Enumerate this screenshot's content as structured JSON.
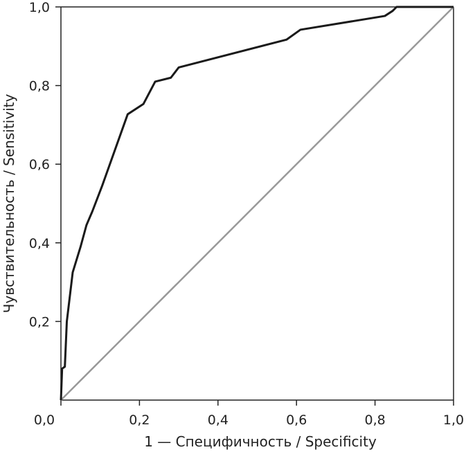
{
  "chart_data": {
    "type": "line",
    "title": "",
    "xlabel": "1 — Специфичность / Specificity",
    "ylabel": "Чувствительность / Sensitivity",
    "xlim": [
      0,
      1
    ],
    "ylim": [
      0,
      1
    ],
    "x_tick_values": [
      0,
      0.2,
      0.4,
      0.6,
      0.8,
      1.0
    ],
    "y_tick_values": [
      0.2,
      0.4,
      0.6,
      0.8,
      1.0
    ],
    "x_tick_labels": [
      "0,0",
      "0,2",
      "0,4",
      "0,6",
      "0,8",
      "1,0"
    ],
    "y_tick_labels": [
      "0,2",
      "0,4",
      "0,6",
      "0,8",
      "1,0"
    ],
    "grid": false,
    "series": [
      {
        "color": "#1a1a1a",
        "points": [
          [
            0.0,
            0.0
          ],
          [
            0.003,
            0.08
          ],
          [
            0.01,
            0.085
          ],
          [
            0.015,
            0.2
          ],
          [
            0.03,
            0.325
          ],
          [
            0.05,
            0.39
          ],
          [
            0.065,
            0.445
          ],
          [
            0.08,
            0.48
          ],
          [
            0.105,
            0.545
          ],
          [
            0.17,
            0.727
          ],
          [
            0.21,
            0.753
          ],
          [
            0.24,
            0.81
          ],
          [
            0.28,
            0.82
          ],
          [
            0.3,
            0.846
          ],
          [
            0.575,
            0.917
          ],
          [
            0.61,
            0.942
          ],
          [
            0.825,
            0.977
          ],
          [
            0.845,
            0.99
          ],
          [
            0.855,
            1.0
          ],
          [
            1.0,
            1.0
          ]
        ]
      },
      {
        "color": "#999999",
        "points": [
          [
            0,
            0
          ],
          [
            1,
            1
          ]
        ]
      }
    ]
  }
}
